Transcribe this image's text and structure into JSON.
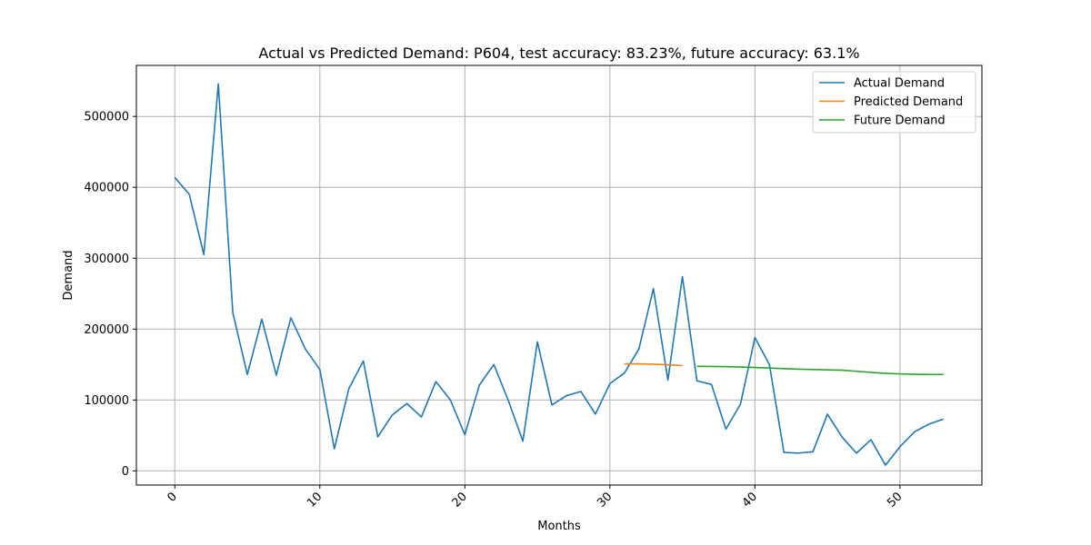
{
  "chart_data": {
    "type": "line",
    "title": "Actual vs Predicted Demand: P604, test accuracy: 83.23%, future accuracy: 63.1%",
    "xlabel": "Months",
    "ylabel": "Demand",
    "xlim": [
      -2.65,
      55.65
    ],
    "ylim": [
      -20000,
      572000
    ],
    "xticks": [
      0,
      10,
      20,
      30,
      40,
      50
    ],
    "yticks": [
      0,
      100000,
      200000,
      300000,
      400000,
      500000
    ],
    "grid": true,
    "legend_position": "top-right",
    "series": [
      {
        "name": "Actual Demand",
        "color": "#1f77b4",
        "x": [
          0,
          1,
          2,
          3,
          4,
          5,
          6,
          7,
          8,
          9,
          10,
          11,
          12,
          13,
          14,
          15,
          16,
          17,
          18,
          19,
          20,
          21,
          22,
          23,
          24,
          25,
          26,
          27,
          28,
          29,
          30,
          31,
          32,
          33,
          34,
          35,
          36,
          37,
          38,
          39,
          40,
          41,
          42,
          43,
          44,
          45,
          46,
          47,
          48,
          49,
          50,
          51,
          52,
          53
        ],
        "values": [
          414000,
          390000,
          305000,
          546000,
          223000,
          136000,
          214000,
          135000,
          216000,
          172000,
          143000,
          31000,
          116000,
          155000,
          48000,
          79000,
          95000,
          76000,
          126000,
          100000,
          51000,
          121000,
          150000,
          99000,
          42000,
          182000,
          93000,
          106000,
          112000,
          80000,
          123000,
          138000,
          172000,
          257000,
          128000,
          274000,
          127000,
          122000,
          59000,
          94000,
          188000,
          150000,
          26000,
          25000,
          27000,
          80000,
          48000,
          25000,
          44000,
          8000,
          34000,
          55000,
          66000,
          73000
        ]
      },
      {
        "name": "Predicted Demand",
        "color": "#ff7f0e",
        "x": [
          31,
          32,
          33,
          34,
          35
        ],
        "values": [
          151000,
          151000,
          150500,
          149500,
          148500
        ]
      },
      {
        "name": "Future Demand",
        "color": "#2ca02c",
        "x": [
          36,
          37,
          38,
          39,
          40,
          41,
          42,
          43,
          44,
          45,
          46,
          47,
          48,
          49,
          50,
          51,
          52,
          53
        ],
        "values": [
          147500,
          147300,
          147000,
          146500,
          145800,
          145000,
          144200,
          143500,
          143000,
          142500,
          142000,
          140500,
          139000,
          137500,
          136800,
          136200,
          136000,
          136000
        ]
      }
    ]
  }
}
